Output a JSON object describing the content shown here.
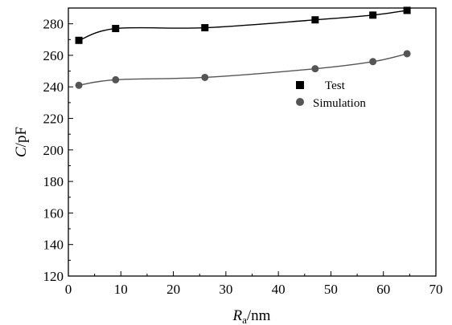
{
  "chart_data": {
    "type": "line",
    "title": "",
    "xlabel": {
      "italic": "R",
      "subscript": "a",
      "rest": "/nm"
    },
    "ylabel": {
      "italic": "C",
      "rest": "/pF"
    },
    "xlim": [
      0,
      70
    ],
    "ylim": [
      120,
      290
    ],
    "xticks": [
      "0",
      "10",
      "20",
      "30",
      "40",
      "50",
      "60",
      "70"
    ],
    "yticks": [
      "120",
      "140",
      "160",
      "180",
      "200",
      "220",
      "240",
      "260",
      "280"
    ],
    "legend_position": "right-middle",
    "series": [
      {
        "name": "Test",
        "marker": "square",
        "color": "#000000",
        "x": [
          2,
          9,
          26,
          47,
          58,
          64.5
        ],
        "y": [
          269.5,
          277,
          277.5,
          282.5,
          285.5,
          288.5
        ]
      },
      {
        "name": "Simulation",
        "marker": "circle",
        "color": "#555555",
        "x": [
          2,
          9,
          26,
          47,
          58,
          64.5
        ],
        "y": [
          241,
          244.5,
          246,
          251.5,
          256,
          261
        ]
      }
    ]
  }
}
